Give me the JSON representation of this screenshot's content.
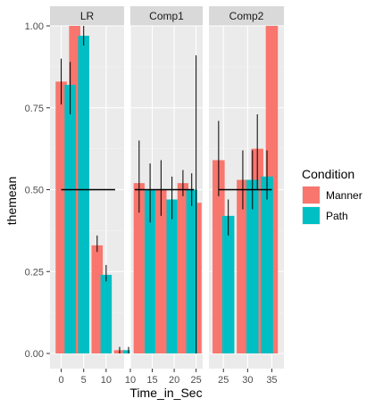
{
  "chart_data": {
    "type": "bar",
    "xlabel": "Time_in_Sec",
    "ylabel": "themean",
    "ylim": [
      0,
      1
    ],
    "y_ticks": [
      "0.00",
      "0.25",
      "0.50",
      "0.75",
      "1.00"
    ],
    "reference_line": 0.5,
    "grid": true,
    "legend": {
      "title": "Condition",
      "placement": "right",
      "entries": [
        {
          "name": "Manner",
          "color": "#F8766D"
        },
        {
          "name": "Path",
          "color": "#00BFC4"
        }
      ]
    },
    "panels": [
      {
        "name": "LR",
        "xlim": [
          -2.5,
          14
        ],
        "x_ticks": [
          0,
          5,
          10
        ],
        "bar_width": 2.5,
        "line_x": [
          0,
          12
        ],
        "series": [
          {
            "name": "Manner",
            "x": [
              0,
              3,
              8,
              13
            ],
            "y": [
              0.83,
              1.0,
              0.33,
              0.01
            ],
            "err_low": [
              0.76,
              1.0,
              0.31,
              0.0
            ],
            "err_high": [
              0.9,
              1.0,
              0.36,
              0.02
            ]
          },
          {
            "name": "Path",
            "x": [
              2,
              5,
              10,
              15
            ],
            "y": [
              0.82,
              0.97,
              0.24,
              0.01
            ],
            "err_low": [
              0.73,
              0.94,
              0.22,
              0.0
            ],
            "err_high": [
              0.89,
              1.0,
              0.27,
              0.02
            ]
          }
        ]
      },
      {
        "name": "Comp1",
        "xlim": [
          10,
          26.5
        ],
        "x_ticks": [
          10,
          15,
          20,
          25
        ],
        "bar_width": 2.5,
        "line_x": [
          11,
          24.5
        ],
        "series": [
          {
            "name": "Manner",
            "x": [
              12,
              17,
              22,
              25
            ],
            "y": [
              0.52,
              0.5,
              0.52,
              0.46
            ],
            "err_low": [
              0.43,
              0.42,
              0.48,
              0.0
            ],
            "err_high": [
              0.65,
              0.59,
              0.56,
              0.91
            ]
          },
          {
            "name": "Path",
            "x": [
              14.5,
              19.5,
              24
            ],
            "y": [
              0.5,
              0.47,
              0.5
            ],
            "err_low": [
              0.4,
              0.41,
              0.45
            ],
            "err_high": [
              0.58,
              0.54,
              0.55
            ]
          }
        ]
      },
      {
        "name": "Comp2",
        "xlim": [
          22,
          37.5
        ],
        "x_ticks": [
          25,
          30,
          35
        ],
        "bar_width": 2.5,
        "line_x": [
          24,
          35
        ],
        "series": [
          {
            "name": "Manner",
            "x": [
              24,
              29,
              32,
              35
            ],
            "y": [
              0.59,
              0.53,
              0.625,
              1.0
            ],
            "err_low": [
              0.48,
              0.44,
              0.5,
              1.0
            ],
            "err_high": [
              0.71,
              0.62,
              0.73,
              1.0
            ]
          },
          {
            "name": "Path",
            "x": [
              26,
              31,
              34
            ],
            "y": [
              0.42,
              0.53,
              0.54
            ],
            "err_low": [
              0.36,
              0.44,
              0.47
            ],
            "err_high": [
              0.47,
              0.62,
              0.62
            ]
          }
        ]
      }
    ]
  }
}
